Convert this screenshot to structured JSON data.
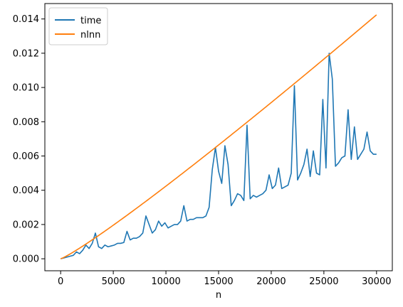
{
  "chart_data": {
    "type": "line",
    "title": "",
    "xlabel": "n",
    "ylabel": "",
    "xlim": [
      -1500,
      31500
    ],
    "ylim": [
      -0.0007,
      0.0149
    ],
    "xticks": [
      0,
      5000,
      10000,
      15000,
      20000,
      25000,
      30000
    ],
    "xtick_labels": [
      "0",
      "5000",
      "10000",
      "15000",
      "20000",
      "25000",
      "30000"
    ],
    "yticks": [
      0.0,
      0.002,
      0.004,
      0.006,
      0.008,
      0.01,
      0.012,
      0.014
    ],
    "ytick_labels": [
      "0.000",
      "0.002",
      "0.004",
      "0.006",
      "0.008",
      "0.010",
      "0.012",
      "0.014"
    ],
    "grid": false,
    "legend_position": "top-left",
    "series": [
      {
        "name": "time",
        "color": "#1f77b4",
        "x": [
          0,
          300,
          600,
          900,
          1200,
          1500,
          1800,
          2100,
          2400,
          2700,
          3000,
          3300,
          3600,
          3900,
          4200,
          4500,
          4800,
          5100,
          5400,
          5700,
          6000,
          6300,
          6600,
          6900,
          7200,
          7500,
          7800,
          8100,
          8400,
          8700,
          9000,
          9300,
          9600,
          9900,
          10200,
          10500,
          10800,
          11100,
          11400,
          11700,
          12000,
          12300,
          12600,
          12900,
          13200,
          13500,
          13800,
          14100,
          14400,
          14700,
          15000,
          15300,
          15600,
          15900,
          16200,
          16500,
          16800,
          17100,
          17400,
          17700,
          18000,
          18300,
          18600,
          18900,
          19200,
          19500,
          19800,
          20100,
          20400,
          20700,
          21000,
          21300,
          21600,
          21900,
          22200,
          22500,
          22800,
          23100,
          23400,
          23700,
          24000,
          24300,
          24600,
          24900,
          25200,
          25500,
          25800,
          26100,
          26400,
          26700,
          27000,
          27300,
          27600,
          27900,
          28200,
          28500,
          28800,
          29100,
          29400,
          29700,
          30000
        ],
        "y": [
          0.0,
          5e-05,
          0.0001,
          0.00015,
          0.0002,
          0.0004,
          0.0003,
          0.0005,
          0.0008,
          0.0006,
          0.0009,
          0.0015,
          0.0007,
          0.0006,
          0.0008,
          0.0007,
          0.00075,
          0.0008,
          0.0009,
          0.0009,
          0.00095,
          0.0016,
          0.0011,
          0.0012,
          0.0012,
          0.0013,
          0.0015,
          0.0025,
          0.002,
          0.0015,
          0.0017,
          0.0022,
          0.0019,
          0.0021,
          0.0018,
          0.0019,
          0.002,
          0.002,
          0.0022,
          0.0031,
          0.0022,
          0.0023,
          0.0023,
          0.0024,
          0.0024,
          0.0024,
          0.0025,
          0.003,
          0.0052,
          0.0065,
          0.0051,
          0.0044,
          0.0066,
          0.0055,
          0.0031,
          0.0034,
          0.0038,
          0.0037,
          0.0034,
          0.0078,
          0.0035,
          0.0037,
          0.0036,
          0.0037,
          0.0038,
          0.004,
          0.0049,
          0.0041,
          0.0043,
          0.0053,
          0.0041,
          0.0042,
          0.0043,
          0.005,
          0.0101,
          0.0046,
          0.005,
          0.0055,
          0.0064,
          0.0048,
          0.0063,
          0.005,
          0.0049,
          0.0093,
          0.0053,
          0.012,
          0.0105,
          0.0054,
          0.0056,
          0.0059,
          0.006,
          0.0087,
          0.0058,
          0.0077,
          0.0058,
          0.0061,
          0.0064,
          0.0074,
          0.0063,
          0.0061,
          0.0061
        ]
      },
      {
        "name": "nlnn",
        "color": "#ff7f0e",
        "function": "n*ln(n)",
        "scale": 4.605e-08,
        "x_range": [
          0,
          30000
        ]
      }
    ]
  }
}
